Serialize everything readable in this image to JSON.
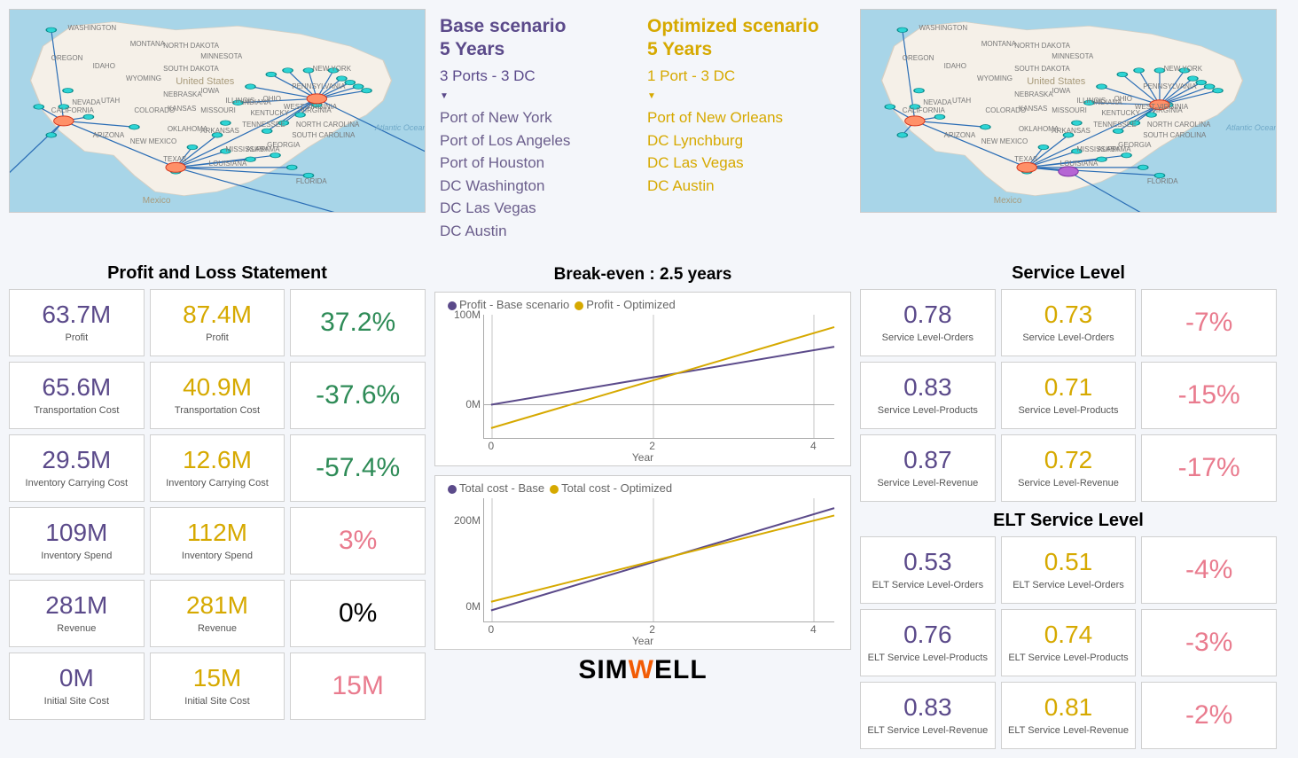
{
  "colors": {
    "purple": "#5b4a8a",
    "gold": "#d6a900",
    "green": "#2e8b57",
    "pink": "#e97b8e",
    "black": "#000",
    "gridline": "#e2e2e2"
  },
  "scenarios": {
    "base": {
      "title": "Base scenario",
      "sub": "5 Years",
      "ports": "3 Ports - 3 DC",
      "items": [
        "Port of New York",
        "Port of Los Angeles",
        "Port of Houston",
        "DC Washington",
        "DC Las Vegas",
        "DC Austin"
      ]
    },
    "opt": {
      "title": "Optimized scenario",
      "sub": "5 Years",
      "ports": "1 Port - 3 DC",
      "items": [
        "Port of New Orleans",
        "DC Lynchburg",
        "DC Las Vegas",
        "DC Austin"
      ]
    }
  },
  "pl": {
    "title": "Profit and Loss Statement",
    "rows": [
      {
        "base": "63.7M",
        "opt": "87.4M",
        "delta": "37.2%",
        "label": "Profit",
        "dc": "green"
      },
      {
        "base": "65.6M",
        "opt": "40.9M",
        "delta": "-37.6%",
        "label": "Transportation Cost",
        "dc": "green"
      },
      {
        "base": "29.5M",
        "opt": "12.6M",
        "delta": "-57.4%",
        "label": "Inventory Carrying Cost",
        "dc": "green"
      },
      {
        "base": "109M",
        "opt": "112M",
        "delta": "3%",
        "label": "Inventory Spend",
        "dc": "pink"
      },
      {
        "base": "281M",
        "opt": "281M",
        "delta": "0%",
        "label": "Revenue",
        "dc": "black"
      },
      {
        "base": "0M",
        "opt": "15M",
        "delta": "15M",
        "label": "Initial Site Cost",
        "dc": "pink"
      }
    ]
  },
  "svc": {
    "title": "Service Level",
    "rows": [
      {
        "base": "0.78",
        "opt": "0.73",
        "delta": "-7%",
        "label": "Service Level-Orders"
      },
      {
        "base": "0.83",
        "opt": "0.71",
        "delta": "-15%",
        "label": "Service Level-Products"
      },
      {
        "base": "0.87",
        "opt": "0.72",
        "delta": "-17%",
        "label": "Service Level-Revenue"
      }
    ]
  },
  "elt": {
    "title": "ELT Service Level",
    "rows": [
      {
        "base": "0.53",
        "opt": "0.51",
        "delta": "-4%",
        "label": "ELT Service Level-Orders"
      },
      {
        "base": "0.76",
        "opt": "0.74",
        "delta": "-3%",
        "label": "ELT Service Level-Products"
      },
      {
        "base": "0.83",
        "opt": "0.81",
        "delta": "-2%",
        "label": "ELT Service Level-Revenue"
      }
    ]
  },
  "chart1": {
    "title": "Break-even : 2.5 years",
    "legend": [
      {
        "c": "#5b4a8a",
        "t": "Profit - Base scenario"
      },
      {
        "c": "#d6a900",
        "t": "Profit - Optimized"
      }
    ],
    "yticks": [
      "100M",
      "0M"
    ],
    "ytick_pos": [
      0,
      73
    ],
    "xticks": [
      "0",
      "2",
      "4"
    ],
    "xtick_pos": [
      2,
      48,
      94
    ],
    "yzero": 73,
    "series": [
      {
        "color": "#5b4a8a",
        "pts": [
          [
            2,
            73
          ],
          [
            100,
            26
          ]
        ]
      },
      {
        "color": "#d6a900",
        "pts": [
          [
            2,
            92
          ],
          [
            100,
            10
          ]
        ]
      }
    ],
    "xaxis": "Year"
  },
  "chart2": {
    "legend": [
      {
        "c": "#5b4a8a",
        "t": "Total cost - Base"
      },
      {
        "c": "#d6a900",
        "t": "Total cost - Optimized"
      }
    ],
    "yticks": [
      "200M",
      "0M"
    ],
    "ytick_pos": [
      18,
      88
    ],
    "xticks": [
      "0",
      "2",
      "4"
    ],
    "xtick_pos": [
      2,
      48,
      94
    ],
    "series": [
      {
        "color": "#5b4a8a",
        "pts": [
          [
            2,
            91
          ],
          [
            100,
            8
          ]
        ]
      },
      {
        "color": "#d6a900",
        "pts": [
          [
            2,
            84
          ],
          [
            100,
            14
          ]
        ]
      }
    ],
    "xaxis": "Year"
  },
  "map": {
    "places": [
      "WASHINGTON",
      "OREGON",
      "MONTANA",
      "IDAHO",
      "NEVADA",
      "UTAH",
      "ARIZONA",
      "COLORADO",
      "NEW MEXICO",
      "TEXAS",
      "OKLAHOMA",
      "KANSAS",
      "NEBRASKA",
      "NORTH DAKOTA",
      "SOUTH DAKOTA",
      "WYOMING",
      "MINNESOTA",
      "IOWA",
      "MISSOURI",
      "LOUISIANA",
      "MISSISSIPPI",
      "ALABAMA",
      "GEORGIA",
      "FLORIDA",
      "TENNESSEE",
      "KENTUCKY",
      "ILLINOIS",
      "INDIANA",
      "OHIO",
      "WEST VIRGINIA",
      "VIRGINIA",
      "PENNSYLVANIA",
      "NEW YORK",
      "NORTH CAROLINA",
      "SOUTH CAROLINA",
      "United States",
      "Mexico",
      "CALIFORNIA",
      "ARKANSAS",
      "Atlantic Ocean"
    ],
    "place_pos": [
      [
        14,
        7
      ],
      [
        10,
        22
      ],
      [
        29,
        15
      ],
      [
        20,
        26
      ],
      [
        15,
        44
      ],
      [
        22,
        43
      ],
      [
        20,
        60
      ],
      [
        30,
        48
      ],
      [
        29,
        63
      ],
      [
        37,
        72
      ],
      [
        38,
        57
      ],
      [
        38,
        47
      ],
      [
        37,
        40
      ],
      [
        37,
        16
      ],
      [
        37,
        27
      ],
      [
        28,
        32
      ],
      [
        46,
        21
      ],
      [
        46,
        38
      ],
      [
        46,
        48
      ],
      [
        48,
        74
      ],
      [
        52,
        67
      ],
      [
        57,
        67
      ],
      [
        62,
        65
      ],
      [
        69,
        83
      ],
      [
        56,
        55
      ],
      [
        58,
        49
      ],
      [
        52,
        43
      ],
      [
        56,
        44
      ],
      [
        61,
        42
      ],
      [
        66,
        46
      ],
      [
        70,
        48
      ],
      [
        68,
        36
      ],
      [
        73,
        27
      ],
      [
        69,
        55
      ],
      [
        68,
        60
      ],
      [
        40,
        33
      ],
      [
        32,
        92
      ],
      [
        10,
        48
      ],
      [
        46,
        58
      ],
      [
        88,
        56
      ]
    ],
    "base_nodes": [
      [
        10,
        10
      ],
      [
        7,
        48
      ],
      [
        10,
        62
      ],
      [
        13,
        48
      ],
      [
        19,
        53
      ],
      [
        30,
        58
      ],
      [
        40,
        80
      ],
      [
        44,
        68
      ],
      [
        50,
        62
      ],
      [
        52,
        56
      ],
      [
        55,
        46
      ],
      [
        58,
        38
      ],
      [
        63,
        32
      ],
      [
        67,
        30
      ],
      [
        72,
        30
      ],
      [
        78,
        30
      ],
      [
        80,
        34
      ],
      [
        82,
        36
      ],
      [
        84,
        38
      ],
      [
        86,
        40
      ],
      [
        74,
        47
      ],
      [
        70,
        52
      ],
      [
        66,
        56
      ],
      [
        62,
        60
      ],
      [
        58,
        74
      ],
      [
        64,
        72
      ],
      [
        68,
        78
      ],
      [
        72,
        82
      ],
      [
        52,
        70
      ],
      [
        14,
        40
      ]
    ],
    "base_hubs": [
      [
        13,
        55
      ],
      [
        40,
        78
      ],
      [
        74,
        44
      ]
    ],
    "base_routes": [
      [
        [
          13,
          55
        ],
        [
          10,
          10
        ]
      ],
      [
        [
          13,
          55
        ],
        [
          7,
          48
        ]
      ],
      [
        [
          13,
          55
        ],
        [
          10,
          62
        ]
      ],
      [
        [
          13,
          55
        ],
        [
          19,
          53
        ]
      ],
      [
        [
          13,
          55
        ],
        [
          30,
          58
        ]
      ],
      [
        [
          13,
          55
        ],
        [
          40,
          78
        ]
      ],
      [
        [
          40,
          78
        ],
        [
          44,
          68
        ]
      ],
      [
        [
          40,
          78
        ],
        [
          50,
          62
        ]
      ],
      [
        [
          40,
          78
        ],
        [
          52,
          70
        ]
      ],
      [
        [
          40,
          78
        ],
        [
          58,
          74
        ]
      ],
      [
        [
          40,
          78
        ],
        [
          64,
          72
        ]
      ],
      [
        [
          40,
          78
        ],
        [
          68,
          78
        ]
      ],
      [
        [
          40,
          78
        ],
        [
          72,
          82
        ]
      ],
      [
        [
          40,
          78
        ],
        [
          74,
          44
        ]
      ],
      [
        [
          74,
          44
        ],
        [
          55,
          46
        ]
      ],
      [
        [
          74,
          44
        ],
        [
          58,
          38
        ]
      ],
      [
        [
          74,
          44
        ],
        [
          63,
          32
        ]
      ],
      [
        [
          74,
          44
        ],
        [
          67,
          30
        ]
      ],
      [
        [
          74,
          44
        ],
        [
          72,
          30
        ]
      ],
      [
        [
          74,
          44
        ],
        [
          78,
          30
        ]
      ],
      [
        [
          74,
          44
        ],
        [
          80,
          34
        ]
      ],
      [
        [
          74,
          44
        ],
        [
          82,
          36
        ]
      ],
      [
        [
          74,
          44
        ],
        [
          84,
          38
        ]
      ],
      [
        [
          74,
          44
        ],
        [
          86,
          40
        ]
      ],
      [
        [
          74,
          44
        ],
        [
          70,
          52
        ]
      ],
      [
        [
          74,
          44
        ],
        [
          66,
          56
        ]
      ],
      [
        [
          74,
          44
        ],
        [
          62,
          60
        ]
      ],
      [
        [
          40,
          78
        ],
        [
          95,
          110
        ]
      ],
      [
        [
          74,
          44
        ],
        [
          110,
          80
        ]
      ],
      [
        [
          13,
          55
        ],
        [
          -10,
          100
        ]
      ]
    ],
    "opt_nodes": [
      [
        10,
        10
      ],
      [
        7,
        48
      ],
      [
        10,
        62
      ],
      [
        13,
        48
      ],
      [
        19,
        53
      ],
      [
        30,
        58
      ],
      [
        40,
        80
      ],
      [
        44,
        68
      ],
      [
        50,
        62
      ],
      [
        52,
        56
      ],
      [
        55,
        46
      ],
      [
        58,
        38
      ],
      [
        63,
        32
      ],
      [
        67,
        30
      ],
      [
        72,
        30
      ],
      [
        78,
        30
      ],
      [
        80,
        34
      ],
      [
        82,
        36
      ],
      [
        84,
        38
      ],
      [
        86,
        40
      ],
      [
        74,
        47
      ],
      [
        70,
        52
      ],
      [
        66,
        56
      ],
      [
        62,
        60
      ],
      [
        58,
        74
      ],
      [
        64,
        72
      ],
      [
        68,
        78
      ],
      [
        72,
        82
      ],
      [
        52,
        70
      ],
      [
        14,
        40
      ]
    ],
    "opt_hubs": [
      [
        13,
        55
      ],
      [
        40,
        78
      ],
      [
        72,
        47
      ]
    ],
    "opt_port": [
      50,
      80
    ],
    "opt_routes": [
      [
        [
          13,
          55
        ],
        [
          10,
          10
        ]
      ],
      [
        [
          13,
          55
        ],
        [
          7,
          48
        ]
      ],
      [
        [
          13,
          55
        ],
        [
          10,
          62
        ]
      ],
      [
        [
          13,
          55
        ],
        [
          19,
          53
        ]
      ],
      [
        [
          13,
          55
        ],
        [
          30,
          58
        ]
      ],
      [
        [
          13,
          55
        ],
        [
          40,
          78
        ]
      ],
      [
        [
          40,
          78
        ],
        [
          44,
          68
        ]
      ],
      [
        [
          40,
          78
        ],
        [
          50,
          62
        ]
      ],
      [
        [
          40,
          78
        ],
        [
          52,
          70
        ]
      ],
      [
        [
          40,
          78
        ],
        [
          58,
          74
        ]
      ],
      [
        [
          40,
          78
        ],
        [
          64,
          72
        ]
      ],
      [
        [
          40,
          78
        ],
        [
          68,
          78
        ]
      ],
      [
        [
          40,
          78
        ],
        [
          72,
          82
        ]
      ],
      [
        [
          40,
          78
        ],
        [
          72,
          47
        ]
      ],
      [
        [
          72,
          47
        ],
        [
          55,
          46
        ]
      ],
      [
        [
          72,
          47
        ],
        [
          58,
          38
        ]
      ],
      [
        [
          72,
          47
        ],
        [
          63,
          32
        ]
      ],
      [
        [
          72,
          47
        ],
        [
          67,
          30
        ]
      ],
      [
        [
          72,
          47
        ],
        [
          72,
          30
        ]
      ],
      [
        [
          72,
          47
        ],
        [
          78,
          30
        ]
      ],
      [
        [
          72,
          47
        ],
        [
          80,
          34
        ]
      ],
      [
        [
          72,
          47
        ],
        [
          82,
          36
        ]
      ],
      [
        [
          72,
          47
        ],
        [
          84,
          38
        ]
      ],
      [
        [
          72,
          47
        ],
        [
          86,
          40
        ]
      ],
      [
        [
          72,
          47
        ],
        [
          70,
          52
        ]
      ],
      [
        [
          72,
          47
        ],
        [
          66,
          56
        ]
      ],
      [
        [
          72,
          47
        ],
        [
          62,
          60
        ]
      ],
      [
        [
          50,
          80
        ],
        [
          80,
          115
        ]
      ],
      [
        [
          50,
          80
        ],
        [
          40,
          78
        ]
      ]
    ]
  },
  "logo": "SIMWELL"
}
